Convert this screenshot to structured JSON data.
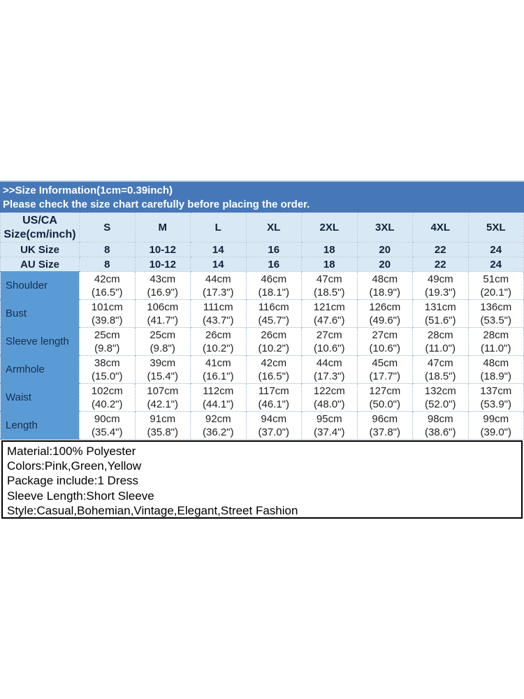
{
  "banner": {
    "line1": ">>Size Information(1cm=0.39inch)",
    "line2": "Please check the size chart carefully before placing the order."
  },
  "colors": {
    "banner_bg": "#4678b8",
    "banner_text": "#ffffff",
    "header_row_bg": "#d9e8f5",
    "label_col_bg": "#5b9bd5",
    "grid_line": "#9cb3c9",
    "header_text": "#10223d",
    "body_text": "#1f1f1f"
  },
  "chart_data": {
    "type": "table",
    "title": "Size Information(1cm=0.39inch)",
    "corner_header": "US/CA\nSize(cm/inch)",
    "size_columns": [
      "S",
      "M",
      "L",
      "XL",
      "2XL",
      "3XL",
      "4XL",
      "5XL"
    ],
    "uk_row": {
      "label": "UK Size",
      "values": [
        "8",
        "10-12",
        "14",
        "16",
        "18",
        "20",
        "22",
        "24"
      ]
    },
    "au_row": {
      "label": "AU Size",
      "values": [
        "8",
        "10-12",
        "14",
        "16",
        "18",
        "20",
        "22",
        "24"
      ]
    },
    "measurement_rows": [
      {
        "label": "Shoulder",
        "values": [
          "42cm\n(16.5\")",
          "43cm\n(16.9\")",
          "44cm\n(17.3\")",
          "46cm\n(18.1\")",
          "47cm\n(18.5\")",
          "48cm\n(18.9\")",
          "49cm\n(19.3\")",
          "51cm\n(20.1\")"
        ]
      },
      {
        "label": "Bust",
        "values": [
          "101cm\n(39.8\")",
          "106cm\n(41.7\")",
          "111cm\n(43.7\")",
          "116cm\n(45.7\")",
          "121cm\n(47.6\")",
          "126cm\n(49.6\")",
          "131cm\n(51.6\")",
          "136cm\n(53.5\")"
        ]
      },
      {
        "label": "Sleeve length",
        "values": [
          "25cm\n(9.8\")",
          "25cm\n(9.8\")",
          "26cm\n(10.2\")",
          "26cm\n(10.2\")",
          "27cm\n(10.6\")",
          "27cm\n(10.6\")",
          "28cm\n(11.0\")",
          "28cm\n(11.0\")"
        ]
      },
      {
        "label": "Armhole",
        "values": [
          "38cm\n(15.0\")",
          "39cm\n(15.4\")",
          "41cm\n(16.1\")",
          "42cm\n(16.5\")",
          "44cm\n(17.3\")",
          "45cm\n(17.7\")",
          "47cm\n(18.5\")",
          "48cm\n(18.9\")"
        ]
      },
      {
        "label": "Waist",
        "values": [
          "102cm\n(40.2\")",
          "107cm\n(42.1\")",
          "112cm\n(44.1\")",
          "117cm\n(46.1\")",
          "122cm\n(48.0\")",
          "127cm\n(50.0\")",
          "132cm\n(52.0\")",
          "137cm\n(53.9\")"
        ]
      },
      {
        "label": "Length",
        "values": [
          "90cm\n(35.4\")",
          "91cm\n(35.8\")",
          "92cm\n(36.2\")",
          "94cm\n(37.0\")",
          "95cm\n(37.4\")",
          "96cm\n(37.8\")",
          "98cm\n(38.6\")",
          "99cm\n(39.0\")"
        ]
      }
    ]
  },
  "product_info": {
    "lines": [
      "Material:100% Polyester",
      "Colors:Pink,Green,Yellow",
      "Package include:1 Dress",
      "Sleeve Length:Short Sleeve",
      "Style:Casual,Bohemian,Vintage,Elegant,Street Fashion"
    ]
  }
}
